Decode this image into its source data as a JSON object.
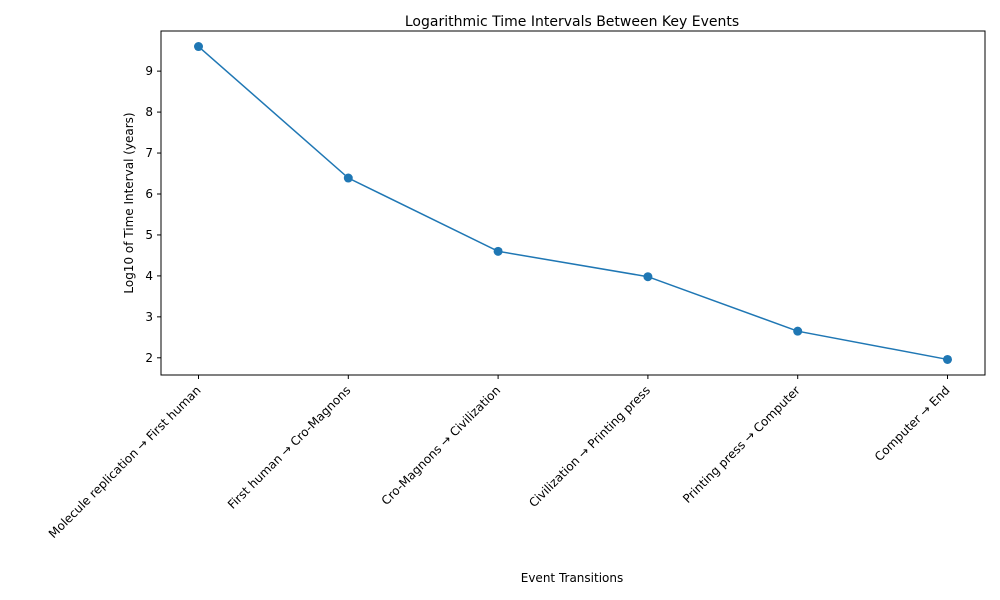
{
  "chart_data": {
    "type": "line",
    "title": "Logarithmic Time Intervals Between Key Events",
    "xlabel": "Event Transitions",
    "ylabel": "Log10 of Time Interval (years)",
    "categories": [
      "Molecule replication → First human",
      "First human → Cro-Magnons",
      "Cro-Magnons → Civilization",
      "Civilization → Printing press",
      "Printing press → Computer",
      "Computer → End"
    ],
    "values": [
      9.6,
      6.39,
      4.6,
      3.98,
      2.65,
      1.96
    ],
    "yticks": [
      2,
      3,
      4,
      5,
      6,
      7,
      8,
      9
    ],
    "ylim": [
      1.58,
      9.98
    ],
    "grid": false,
    "color": "#1f77b4"
  }
}
